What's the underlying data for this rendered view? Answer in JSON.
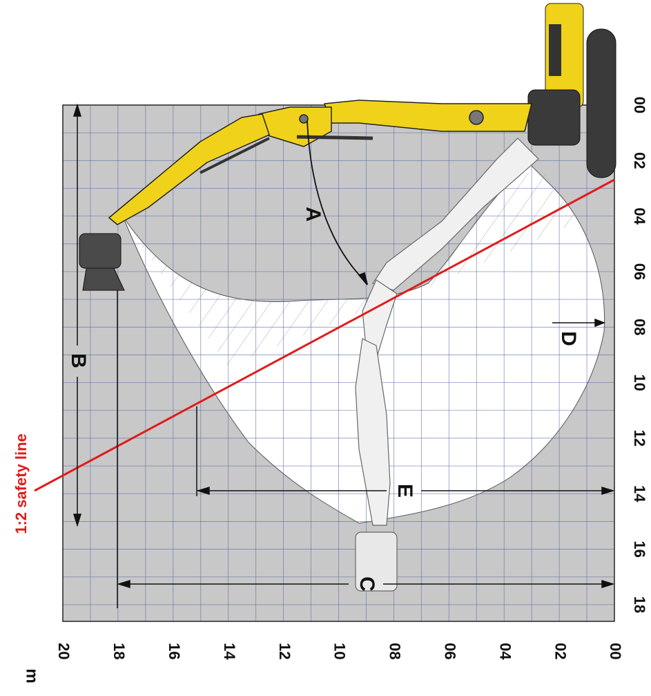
{
  "unit_label": "m",
  "safety_line_label": "1:2 safety line",
  "dimension_labels": {
    "A": "A",
    "B": "B",
    "C": "C",
    "D": "D",
    "E": "E"
  },
  "reach_axis_ticks": [
    "00",
    "02",
    "04",
    "06",
    "08",
    "10",
    "12",
    "14",
    "16",
    "18"
  ],
  "height_axis_ticks": [
    "20",
    "18",
    "16",
    "14",
    "12",
    "10",
    "08",
    "06",
    "04",
    "02",
    "00"
  ],
  "colors": {
    "grid_background": "#c8c8c8",
    "grid_lines": "#5a6aa8",
    "working_area": "#ffffff",
    "safety_line": "#e01b1b",
    "machine_body": "#f1d21a",
    "tracks": "#3a3a3a"
  }
}
